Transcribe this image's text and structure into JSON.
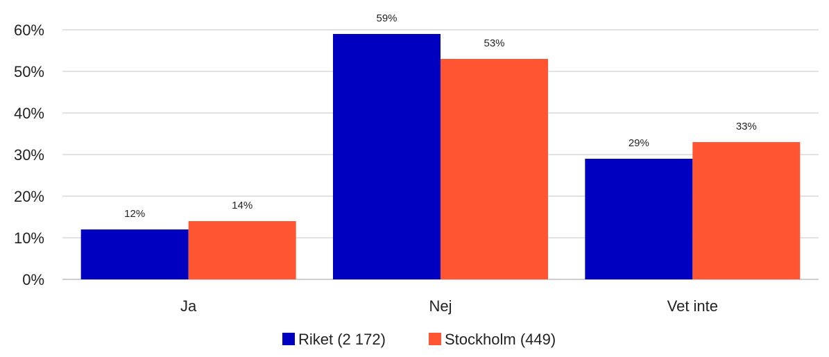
{
  "chart_data": {
    "type": "bar",
    "title": "",
    "categories": [
      "Ja",
      "Nej",
      "Vet inte"
    ],
    "series": [
      {
        "name": "Riket (2 172)",
        "color": "#0000C0",
        "values": [
          12,
          59,
          29
        ],
        "labels": [
          "12%",
          "59%",
          "29%"
        ]
      },
      {
        "name": "Stockholm (449)",
        "color": "#FF5533",
        "values": [
          14,
          53,
          33
        ],
        "labels": [
          "14%",
          "53%",
          "33%"
        ]
      }
    ],
    "ylim": [
      0,
      60
    ],
    "yticks": [
      0,
      10,
      20,
      30,
      40,
      50,
      60
    ],
    "ytick_labels": [
      "0%",
      "10%",
      "20%",
      "30%",
      "40%",
      "50%",
      "60%"
    ],
    "xlabel": "",
    "ylabel": "",
    "grid": true,
    "legend_position": "bottom"
  }
}
